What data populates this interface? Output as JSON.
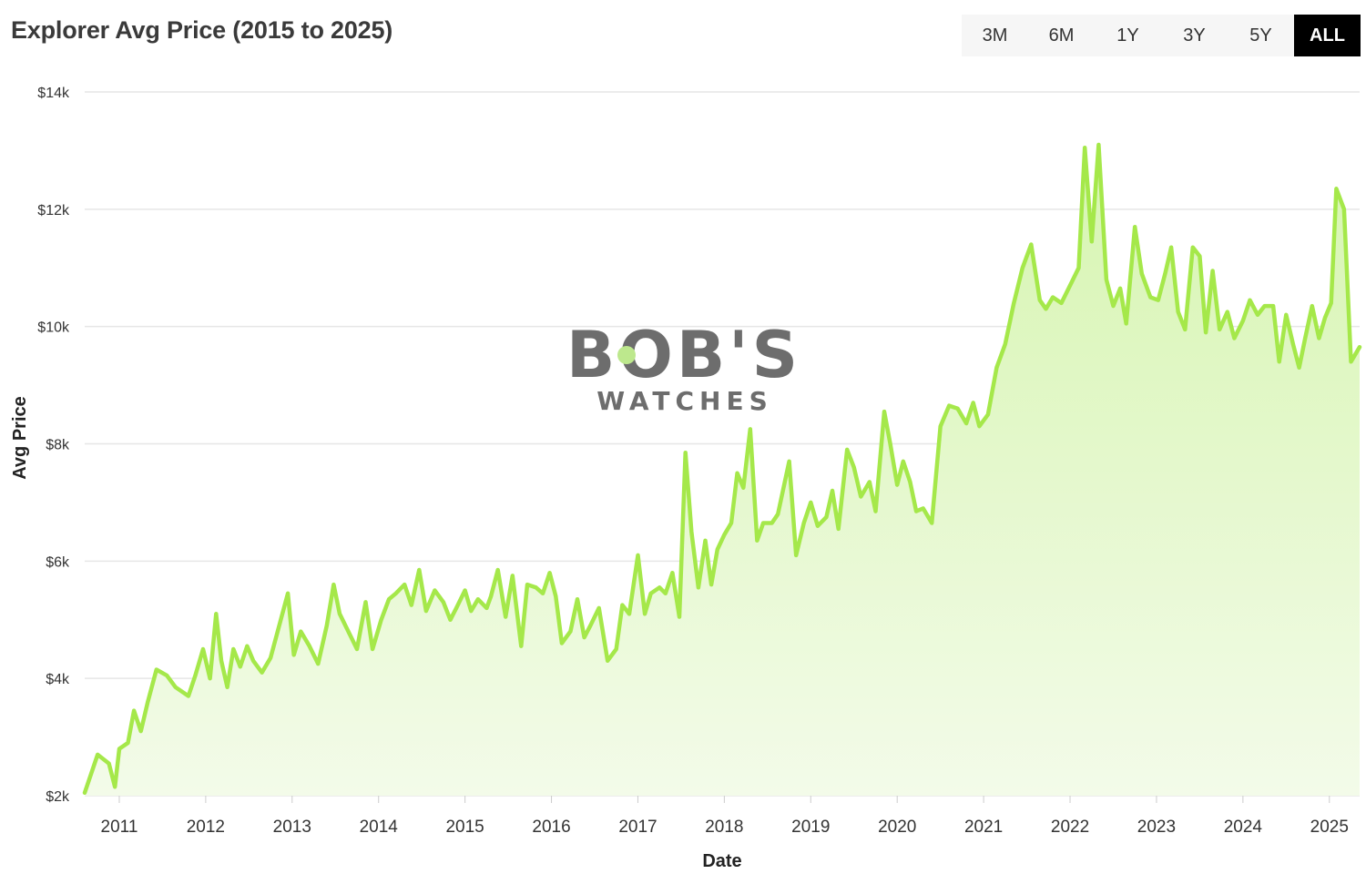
{
  "header": {
    "title": "Explorer Avg Price (2015 to 2025)",
    "ranges": [
      "3M",
      "6M",
      "1Y",
      "3Y",
      "5Y",
      "ALL"
    ],
    "active_range": "ALL"
  },
  "watermark": {
    "line1": "BOB'S",
    "line2": "WATCHES",
    "accent": "#bde88d"
  },
  "colors": {
    "line": "#a5e84a",
    "fill_top": "#d6f5b0",
    "fill_bottom": "#f3fbe9",
    "grid": "#e6e6e6"
  },
  "chart_data": {
    "type": "area",
    "title": "Explorer Avg Price (2015 to 2025)",
    "xlabel": "Date",
    "ylabel": "Avg Price",
    "xlim": [
      2010.6,
      2025.35
    ],
    "ylim": [
      2000,
      14000
    ],
    "y_ticks": [
      2000,
      4000,
      6000,
      8000,
      10000,
      12000,
      14000
    ],
    "y_tick_labels": [
      "$2k",
      "$4k",
      "$6k",
      "$8k",
      "$10k",
      "$12k",
      "$14k"
    ],
    "x_ticks": [
      2011,
      2012,
      2013,
      2014,
      2015,
      2016,
      2017,
      2018,
      2019,
      2020,
      2021,
      2022,
      2023,
      2024,
      2025
    ],
    "x_tick_labels": [
      "2011",
      "2012",
      "2013",
      "2014",
      "2015",
      "2016",
      "2017",
      "2018",
      "2019",
      "2020",
      "2021",
      "2022",
      "2023",
      "2024",
      "2025"
    ],
    "grid": true,
    "legend": "none",
    "series": [
      {
        "points": [
          [
            2010.6,
            2050
          ],
          [
            2010.75,
            2700
          ],
          [
            2010.88,
            2550
          ],
          [
            2010.95,
            2150
          ],
          [
            2011.0,
            2800
          ],
          [
            2011.1,
            2900
          ],
          [
            2011.17,
            3450
          ],
          [
            2011.25,
            3100
          ],
          [
            2011.33,
            3600
          ],
          [
            2011.43,
            4150
          ],
          [
            2011.55,
            4050
          ],
          [
            2011.65,
            3850
          ],
          [
            2011.8,
            3700
          ],
          [
            2011.88,
            4050
          ],
          [
            2011.97,
            4500
          ],
          [
            2012.05,
            4000
          ],
          [
            2012.12,
            5100
          ],
          [
            2012.18,
            4300
          ],
          [
            2012.25,
            3850
          ],
          [
            2012.32,
            4500
          ],
          [
            2012.4,
            4200
          ],
          [
            2012.48,
            4550
          ],
          [
            2012.55,
            4300
          ],
          [
            2012.65,
            4100
          ],
          [
            2012.75,
            4350
          ],
          [
            2012.85,
            4900
          ],
          [
            2012.95,
            5450
          ],
          [
            2013.02,
            4400
          ],
          [
            2013.1,
            4800
          ],
          [
            2013.2,
            4550
          ],
          [
            2013.3,
            4250
          ],
          [
            2013.4,
            4900
          ],
          [
            2013.48,
            5600
          ],
          [
            2013.55,
            5100
          ],
          [
            2013.65,
            4800
          ],
          [
            2013.75,
            4500
          ],
          [
            2013.85,
            5300
          ],
          [
            2013.93,
            4500
          ],
          [
            2014.03,
            5000
          ],
          [
            2014.12,
            5350
          ],
          [
            2014.2,
            5450
          ],
          [
            2014.3,
            5600
          ],
          [
            2014.38,
            5250
          ],
          [
            2014.47,
            5850
          ],
          [
            2014.55,
            5150
          ],
          [
            2014.65,
            5500
          ],
          [
            2014.75,
            5300
          ],
          [
            2014.83,
            5000
          ],
          [
            2014.9,
            5200
          ],
          [
            2015.0,
            5500
          ],
          [
            2015.07,
            5150
          ],
          [
            2015.15,
            5350
          ],
          [
            2015.25,
            5200
          ],
          [
            2015.3,
            5400
          ],
          [
            2015.38,
            5850
          ],
          [
            2015.47,
            5050
          ],
          [
            2015.55,
            5750
          ],
          [
            2015.65,
            4550
          ],
          [
            2015.72,
            5600
          ],
          [
            2015.82,
            5550
          ],
          [
            2015.9,
            5450
          ],
          [
            2015.98,
            5800
          ],
          [
            2016.05,
            5400
          ],
          [
            2016.12,
            4600
          ],
          [
            2016.22,
            4800
          ],
          [
            2016.3,
            5350
          ],
          [
            2016.38,
            4700
          ],
          [
            2016.45,
            4900
          ],
          [
            2016.55,
            5200
          ],
          [
            2016.65,
            4300
          ],
          [
            2016.75,
            4500
          ],
          [
            2016.82,
            5250
          ],
          [
            2016.9,
            5100
          ],
          [
            2017.0,
            6100
          ],
          [
            2017.08,
            5100
          ],
          [
            2017.15,
            5450
          ],
          [
            2017.25,
            5550
          ],
          [
            2017.32,
            5450
          ],
          [
            2017.4,
            5800
          ],
          [
            2017.48,
            5050
          ],
          [
            2017.55,
            7850
          ],
          [
            2017.62,
            6500
          ],
          [
            2017.7,
            5550
          ],
          [
            2017.78,
            6350
          ],
          [
            2017.85,
            5600
          ],
          [
            2017.92,
            6200
          ],
          [
            2018.0,
            6450
          ],
          [
            2018.08,
            6650
          ],
          [
            2018.15,
            7500
          ],
          [
            2018.22,
            7250
          ],
          [
            2018.3,
            8250
          ],
          [
            2018.38,
            6350
          ],
          [
            2018.45,
            6650
          ],
          [
            2018.55,
            6650
          ],
          [
            2018.62,
            6800
          ],
          [
            2018.75,
            7700
          ],
          [
            2018.83,
            6100
          ],
          [
            2018.92,
            6650
          ],
          [
            2019.0,
            7000
          ],
          [
            2019.08,
            6600
          ],
          [
            2019.18,
            6750
          ],
          [
            2019.25,
            7200
          ],
          [
            2019.32,
            6550
          ],
          [
            2019.42,
            7900
          ],
          [
            2019.5,
            7600
          ],
          [
            2019.58,
            7100
          ],
          [
            2019.68,
            7350
          ],
          [
            2019.75,
            6850
          ],
          [
            2019.85,
            8550
          ],
          [
            2019.92,
            8000
          ],
          [
            2020.0,
            7300
          ],
          [
            2020.07,
            7700
          ],
          [
            2020.15,
            7350
          ],
          [
            2020.22,
            6850
          ],
          [
            2020.3,
            6900
          ],
          [
            2020.4,
            6650
          ],
          [
            2020.5,
            8300
          ],
          [
            2020.6,
            8650
          ],
          [
            2020.7,
            8600
          ],
          [
            2020.8,
            8350
          ],
          [
            2020.88,
            8700
          ],
          [
            2020.95,
            8300
          ],
          [
            2021.05,
            8500
          ],
          [
            2021.15,
            9300
          ],
          [
            2021.25,
            9700
          ],
          [
            2021.35,
            10400
          ],
          [
            2021.45,
            11000
          ],
          [
            2021.55,
            11400
          ],
          [
            2021.65,
            10450
          ],
          [
            2021.72,
            10300
          ],
          [
            2021.8,
            10500
          ],
          [
            2021.9,
            10400
          ],
          [
            2022.0,
            10700
          ],
          [
            2022.1,
            11000
          ],
          [
            2022.17,
            13050
          ],
          [
            2022.25,
            11450
          ],
          [
            2022.33,
            13100
          ],
          [
            2022.42,
            10800
          ],
          [
            2022.5,
            10350
          ],
          [
            2022.58,
            10650
          ],
          [
            2022.65,
            10050
          ],
          [
            2022.75,
            11700
          ],
          [
            2022.83,
            10900
          ],
          [
            2022.93,
            10500
          ],
          [
            2023.02,
            10450
          ],
          [
            2023.1,
            10900
          ],
          [
            2023.17,
            11350
          ],
          [
            2023.25,
            10250
          ],
          [
            2023.33,
            9950
          ],
          [
            2023.42,
            11350
          ],
          [
            2023.5,
            11200
          ],
          [
            2023.57,
            9900
          ],
          [
            2023.65,
            10950
          ],
          [
            2023.73,
            9950
          ],
          [
            2023.82,
            10250
          ],
          [
            2023.9,
            9800
          ],
          [
            2024.0,
            10100
          ],
          [
            2024.08,
            10450
          ],
          [
            2024.17,
            10200
          ],
          [
            2024.25,
            10350
          ],
          [
            2024.35,
            10350
          ],
          [
            2024.42,
            9400
          ],
          [
            2024.5,
            10200
          ],
          [
            2024.58,
            9700
          ],
          [
            2024.65,
            9300
          ],
          [
            2024.72,
            9800
          ],
          [
            2024.8,
            10350
          ],
          [
            2024.88,
            9800
          ],
          [
            2024.95,
            10150
          ],
          [
            2025.02,
            10400
          ],
          [
            2025.08,
            12350
          ],
          [
            2025.17,
            12000
          ],
          [
            2025.25,
            9400
          ],
          [
            2025.35,
            9650
          ]
        ]
      }
    ]
  }
}
